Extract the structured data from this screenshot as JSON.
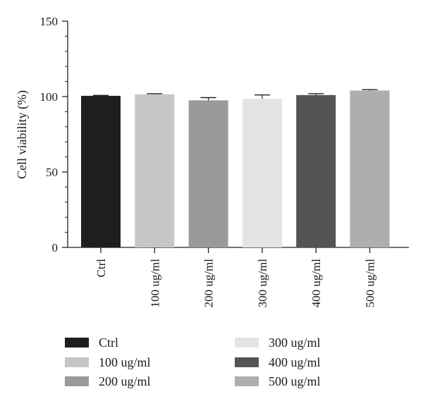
{
  "chart_data": {
    "type": "bar",
    "ylabel": "Cell viability (%)",
    "xlabel": "",
    "title": "",
    "ylim": [
      0,
      150
    ],
    "yticks": [
      0,
      50,
      100,
      150
    ],
    "grid": false,
    "legend_position": "bottom",
    "categories": [
      "Ctrl",
      "100 ug/ml",
      "200 ug/ml",
      "300 ug/ml",
      "400 ug/ml",
      "500 ug/ml"
    ],
    "values": [
      100.5,
      101.5,
      97.5,
      98.5,
      101.0,
      104.0
    ],
    "errors": [
      0.3,
      0.4,
      1.8,
      2.6,
      0.9,
      0.6
    ],
    "colors": [
      "#1e1e1e",
      "#c6c6c6",
      "#9a9a9a",
      "#e4e4e4",
      "#545454",
      "#aeaeae"
    ],
    "legend": [
      "Ctrl",
      "100 ug/ml",
      "200 ug/ml",
      "300 ug/ml",
      "400 ug/ml",
      "500 ug/ml"
    ]
  }
}
